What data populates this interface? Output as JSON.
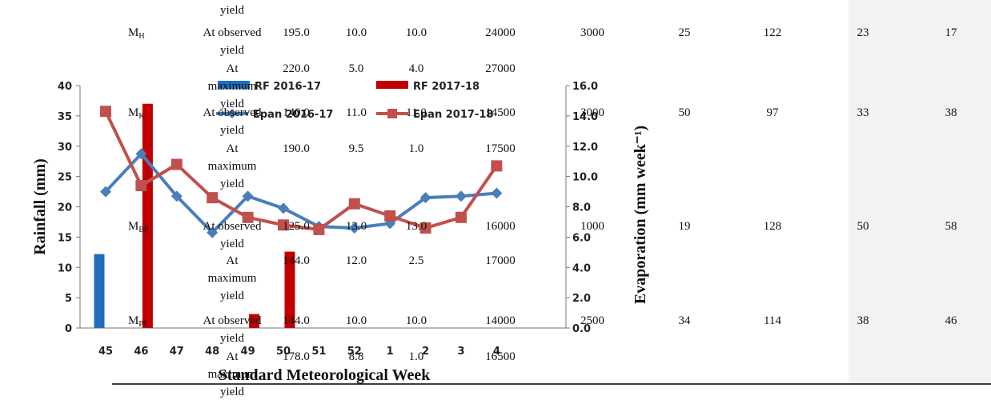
{
  "chart_data": {
    "type": "bar_line",
    "categories": [
      "45",
      "46",
      "47",
      "48",
      "49",
      "50",
      "51",
      "52",
      "1",
      "2",
      "3",
      "4"
    ],
    "xlabel": "Standard Meteorological Week",
    "ylabel": "Rainfall (mm)",
    "y2label": "Evaporation (mm week⁻¹)",
    "ylim": [
      0,
      40
    ],
    "yticks": [
      0,
      5,
      10,
      15,
      20,
      25,
      30,
      35,
      40
    ],
    "y2lim": [
      0,
      16
    ],
    "y2ticks": [
      {
        "value": 0,
        "label": "0.0"
      },
      {
        "value": 2,
        "label": "2.0"
      },
      {
        "value": 4,
        "label": "4.0"
      },
      {
        "value": 6,
        "label": "6.0"
      },
      {
        "value": 8,
        "label": "8.0"
      },
      {
        "value": 10,
        "label": "10.0"
      },
      {
        "value": 12,
        "label": "12.0"
      },
      {
        "value": 14,
        "label": "14.0"
      },
      {
        "value": 16,
        "label": "16.0"
      }
    ],
    "series": [
      {
        "name": "RF 2016-17",
        "kind": "bar",
        "color": "#1f6fbf",
        "values": [
          12.2,
          0,
          0,
          0,
          0,
          0,
          0,
          0,
          0,
          0,
          0,
          0
        ]
      },
      {
        "name": "RF 2017-18",
        "kind": "bar",
        "color": "#c00000",
        "values": [
          0,
          37,
          0,
          0,
          2.3,
          12.6,
          0,
          0,
          0,
          0,
          0,
          0
        ]
      },
      {
        "name": "Epan 2016-17",
        "kind": "line",
        "axis": "y2",
        "color": "#4a7ebb",
        "marker": "diamond",
        "values": [
          9.0,
          11.5,
          8.7,
          6.3,
          8.7,
          7.9,
          6.7,
          6.6,
          6.9,
          8.6,
          8.7,
          8.9
        ]
      },
      {
        "name": "Epan 2017-18",
        "kind": "line",
        "axis": "y2",
        "color": "#c0504d",
        "marker": "square",
        "values": [
          14.3,
          9.4,
          10.8,
          8.6,
          7.3,
          6.8,
          6.5,
          8.2,
          7.4,
          6.6,
          7.3,
          10.7
        ]
      }
    ]
  },
  "table": {
    "top_fragment": "yield",
    "rows": [
      {
        "variety": {
          "main": "M",
          "sub": "H"
        },
        "observed": {
          "condition": [
            "At observed",
            "yield"
          ],
          "cells": [
            "195.0",
            "10.0",
            "10.0",
            "24000",
            "3000",
            "25",
            "122",
            "23",
            "17"
          ]
        },
        "maximum": {
          "condition": [
            "At",
            "maximum",
            "yield"
          ],
          "cells": [
            "220.0",
            "5.0",
            "4.0",
            "27000"
          ]
        }
      },
      {
        "variety": {
          "main": "M",
          "sub": "K"
        },
        "observed": {
          "condition": [
            "At observed",
            "yield"
          ],
          "cells": [
            "140.0",
            "11.0",
            "11.0",
            "14500",
            "3000",
            "50",
            "97",
            "33",
            "38"
          ]
        },
        "maximum": {
          "condition": [
            "At",
            "maximum",
            "yield"
          ],
          "cells": [
            "190.0",
            "9.5",
            "1.0",
            "17500"
          ]
        }
      },
      {
        "variety": {
          "main": "M",
          "sub": "BP"
        },
        "observed": {
          "condition": [
            "At observed",
            "yield"
          ],
          "cells": [
            "125.0",
            "13.0",
            "13.0",
            "16000",
            "1000",
            "19",
            "128",
            "50",
            "58"
          ]
        },
        "maximum": {
          "condition": [
            "At",
            "maximum",
            "yield"
          ],
          "cells": [
            "144.0",
            "12.0",
            "2.5",
            "17000"
          ]
        }
      },
      {
        "variety": {
          "main": "M",
          "sub": "PS"
        },
        "observed": {
          "condition": [
            "At observed",
            "yield"
          ],
          "cells": [
            "144.0",
            "10.0",
            "10.0",
            "14000",
            "2500",
            "34",
            "114",
            "38",
            "46"
          ]
        },
        "maximum": {
          "condition": [
            "At",
            "maximum",
            "yield"
          ],
          "cells": [
            "178.0",
            "8.8",
            "1.0",
            "16500"
          ]
        }
      }
    ]
  }
}
